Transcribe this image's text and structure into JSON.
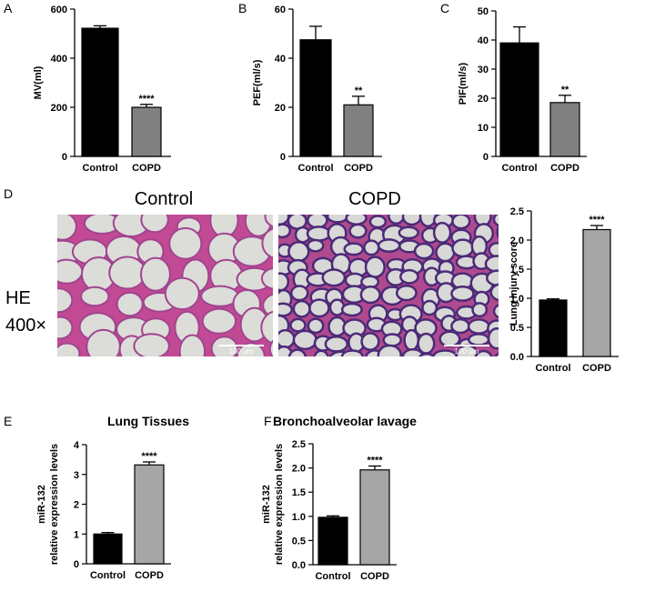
{
  "chart_data": [
    {
      "type": "bar",
      "panel": "A",
      "ylabel": [
        "MV(ml)"
      ],
      "categories": [
        "Control",
        "COPD"
      ],
      "values": [
        522,
        200
      ],
      "errors": [
        10,
        12
      ],
      "annotations": [
        null,
        "****"
      ],
      "colors": [
        "#000000",
        "#808080"
      ],
      "ylim": [
        0,
        600
      ],
      "yticks": [
        0,
        200,
        400,
        600
      ]
    },
    {
      "type": "bar",
      "panel": "B",
      "ylabel": [
        "PEF(ml/s)"
      ],
      "categories": [
        "Control",
        "COPD"
      ],
      "values": [
        47.5,
        21
      ],
      "errors": [
        5.5,
        3.5
      ],
      "annotations": [
        null,
        "**"
      ],
      "colors": [
        "#000000",
        "#808080"
      ],
      "ylim": [
        0,
        60
      ],
      "yticks": [
        0,
        20,
        40,
        60
      ]
    },
    {
      "type": "bar",
      "panel": "C",
      "ylabel": [
        "PIF(ml/s)"
      ],
      "categories": [
        "Control",
        "COPD"
      ],
      "values": [
        39,
        18.5
      ],
      "errors": [
        5.5,
        2.5
      ],
      "annotations": [
        null,
        "**"
      ],
      "colors": [
        "#000000",
        "#808080"
      ],
      "ylim": [
        0,
        50
      ],
      "yticks": [
        0,
        10,
        20,
        30,
        40,
        50
      ]
    },
    {
      "type": "bar",
      "panel": "D",
      "ylabel": [
        "Lung injury score"
      ],
      "categories": [
        "Control",
        "COPD"
      ],
      "values": [
        0.97,
        2.18
      ],
      "errors": [
        0.02,
        0.07
      ],
      "annotations": [
        null,
        "****"
      ],
      "colors": [
        "#000000",
        "#a6a6a6"
      ],
      "ylim": [
        0,
        2.5
      ],
      "yticks": [
        {
          "value": 0,
          "label": "0.0"
        },
        0.5,
        {
          "value": 1,
          "label": "1.0"
        },
        1.5,
        {
          "value": 2,
          "label": "2.0"
        },
        2.5
      ]
    },
    {
      "type": "bar",
      "panel": "E",
      "title": "Lung Tissues",
      "ylabel": [
        "miR-132",
        "relative expression levels"
      ],
      "categories": [
        "Control",
        "COPD"
      ],
      "values": [
        1.0,
        3.32
      ],
      "errors": [
        0.05,
        0.1
      ],
      "annotations": [
        null,
        "****"
      ],
      "colors": [
        "#000000",
        "#a6a6a6"
      ],
      "ylim": [
        0,
        4
      ],
      "yticks": [
        0,
        1,
        2,
        3,
        4
      ]
    },
    {
      "type": "bar",
      "panel": "F",
      "title": "Bronchoalveolar lavage",
      "ylabel": [
        "miR-132",
        "relative expression levels"
      ],
      "categories": [
        "Control",
        "COPD"
      ],
      "values": [
        0.98,
        1.96
      ],
      "errors": [
        0.03,
        0.08
      ],
      "annotations": [
        null,
        "****"
      ],
      "colors": [
        "#000000",
        "#a6a6a6"
      ],
      "ylim": [
        0,
        2.5
      ],
      "yticks": [
        {
          "value": 0,
          "label": "0.0"
        },
        0.5,
        {
          "value": 1,
          "label": "1.0"
        },
        1.5,
        {
          "value": 2,
          "label": "2.0"
        },
        2.5
      ]
    }
  ],
  "histology": {
    "columns": [
      "Control",
      "COPD"
    ],
    "stain": "HE",
    "magnification": "400×",
    "scale_bar": "100 μm"
  }
}
